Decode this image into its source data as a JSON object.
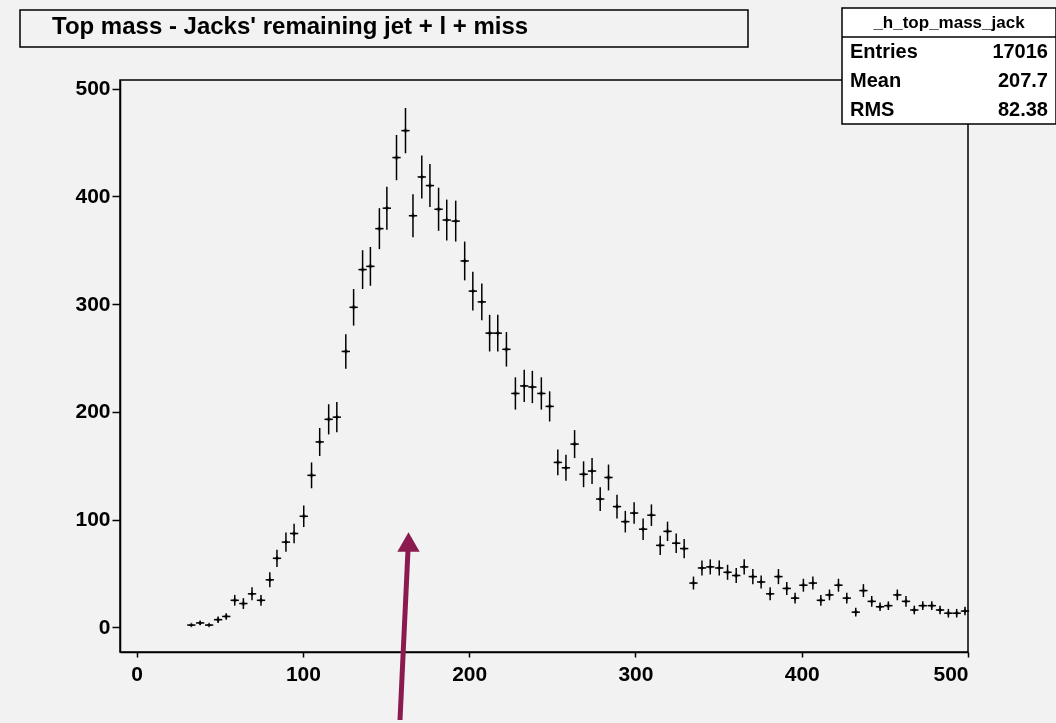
{
  "chart_data": {
    "type": "scatter",
    "title": "Top mass - Jacks' remaining jet + l + miss",
    "x": [
      32.9,
      38.2,
      43.6,
      49.0,
      53.9,
      59.0,
      64.2,
      69.4,
      74.8,
      80.1,
      84.4,
      89.8,
      94.7,
      100.5,
      105.2,
      110.1,
      115.5,
      120.4,
      125.8,
      130.5,
      135.9,
      140.6,
      146.0,
      150.5,
      156.3,
      161.7,
      166.2,
      171.5,
      176.4,
      181.6,
      186.5,
      191.9,
      197.3,
      202.2,
      207.6,
      212.3,
      217.2,
      222.4,
      227.8,
      233.1,
      238.0,
      243.4,
      248.4,
      253.3,
      258.2,
      263.4,
      268.8,
      273.9,
      278.8,
      283.8,
      288.9,
      293.9,
      299.2,
      304.6,
      309.6,
      314.9,
      319.3,
      324.5,
      329.3,
      334.9,
      340.0,
      345.0,
      350.4,
      355.4,
      360.6,
      365.4,
      370.6,
      375.6,
      381.0,
      386.0,
      391.0,
      396.0,
      401.0,
      406.7,
      411.5,
      416.7,
      422.1,
      427.1,
      432.5,
      437.1,
      442.1,
      447.1,
      452.1,
      457.5,
      462.7,
      467.7,
      472.8,
      478.2,
      483.2,
      488.2,
      493.2,
      498.2
    ],
    "values": [
      2,
      4,
      2,
      7,
      10,
      25,
      22,
      31,
      25,
      44,
      64,
      79,
      87,
      103,
      141,
      172,
      193,
      195,
      256,
      297,
      332,
      335,
      370,
      389,
      436,
      461,
      382,
      418,
      410,
      388,
      378,
      377,
      340,
      312,
      302,
      273,
      273,
      258,
      217,
      224,
      223,
      217,
      205,
      153,
      148,
      170,
      142,
      145,
      119,
      139,
      112,
      98,
      106,
      91,
      104,
      76,
      89,
      78,
      73,
      41,
      55,
      56,
      55,
      51,
      48,
      56,
      47,
      42,
      31,
      47,
      36,
      27,
      39,
      41,
      25,
      30,
      39,
      27,
      14,
      34,
      24,
      19,
      20,
      30,
      24,
      16,
      20,
      20,
      16,
      13,
      13,
      15
    ],
    "errors": [
      1,
      2,
      1,
      3,
      3,
      5,
      5,
      6,
      5,
      7,
      8,
      9,
      9,
      10,
      12,
      13,
      14,
      14,
      16,
      17,
      18,
      18,
      19,
      20,
      21,
      21,
      20,
      20,
      20,
      20,
      19,
      19,
      18,
      18,
      17,
      17,
      17,
      16,
      15,
      15,
      15,
      15,
      14,
      12,
      12,
      13,
      12,
      12,
      11,
      12,
      11,
      10,
      10,
      10,
      10,
      9,
      9,
      9,
      9,
      6,
      7,
      7,
      7,
      7,
      7,
      7,
      7,
      6,
      6,
      7,
      6,
      5,
      6,
      6,
      5,
      5,
      6,
      5,
      4,
      6,
      5,
      4,
      4,
      5,
      5,
      4,
      4,
      4,
      4,
      4,
      4,
      4
    ],
    "xerrors": [
      2.5,
      2.5,
      2.5,
      2.5,
      2.5,
      2.5,
      2.5,
      2.5,
      2.5,
      2.5,
      2.5,
      2.5,
      2.5,
      2.5,
      2.5,
      2.5,
      2.5,
      2.5,
      2.5,
      2.5,
      2.5,
      2.5,
      2.5,
      2.5,
      2.5,
      2.5,
      2.5,
      2.5,
      2.5,
      2.5,
      2.5,
      2.5,
      2.5,
      2.5,
      2.5,
      2.5,
      2.5,
      2.5,
      2.5,
      2.5,
      2.5,
      2.5,
      2.5,
      2.5,
      2.5,
      2.5,
      2.5,
      2.5,
      2.5,
      2.5,
      2.5,
      2.5,
      2.5,
      2.5,
      2.5,
      2.5,
      2.5,
      2.5,
      2.5,
      2.5,
      2.5,
      2.5,
      2.5,
      2.5,
      2.5,
      2.5,
      2.5,
      2.5,
      2.5,
      2.5,
      2.5,
      2.5,
      2.5,
      2.5,
      2.5,
      2.5,
      2.5,
      2.5,
      2.5,
      2.5,
      2.5,
      2.5,
      2.5,
      2.5,
      2.5,
      2.5,
      2.5,
      2.5,
      2.5,
      2.5,
      2.5,
      2.5
    ],
    "color": "#000000",
    "marker": "cross",
    "xlim": [
      -10,
      500
    ],
    "ylim": [
      -23,
      508
    ],
    "xticks": [
      0,
      100,
      200,
      300,
      400,
      500
    ],
    "yticks": [
      0,
      100,
      200,
      300,
      400,
      500
    ],
    "grid": false,
    "annotations": [
      "_h_top_mass_jack",
      "Entries",
      "17016",
      "Mean",
      "207.7",
      "RMS",
      "82.38"
    ]
  }
}
